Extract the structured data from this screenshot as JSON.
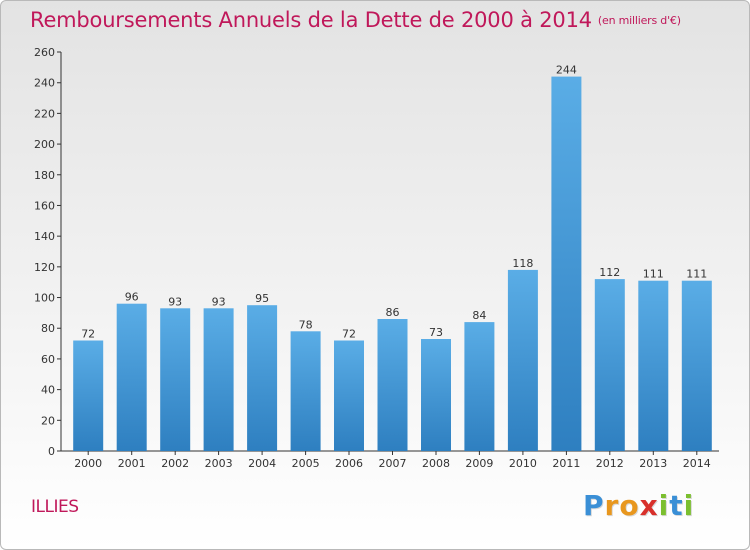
{
  "header": {
    "title": "Remboursements Annuels de la Dette de 2000 à 2014",
    "subtitle": "(en milliers d'€)"
  },
  "footer": {
    "town": "ILLIES",
    "logo": [
      "P",
      "r",
      "o",
      "x",
      "i",
      "t",
      "i"
    ]
  },
  "colors": {
    "title": "#c0185a",
    "bar_top": "#5aade6",
    "bar_bottom": "#2e7fc0",
    "axis": "#333333"
  },
  "chart_data": {
    "type": "bar",
    "title": "Remboursements Annuels de la Dette de 2000 à 2014",
    "xlabel": "",
    "ylabel": "",
    "categories": [
      "2000",
      "2001",
      "2002",
      "2003",
      "2004",
      "2005",
      "2006",
      "2007",
      "2008",
      "2009",
      "2010",
      "2011",
      "2012",
      "2013",
      "2014"
    ],
    "values": [
      72,
      96,
      93,
      93,
      95,
      78,
      72,
      86,
      73,
      84,
      118,
      244,
      112,
      111,
      111
    ],
    "ylim": [
      0,
      260
    ],
    "yticks": [
      0,
      20,
      40,
      60,
      80,
      100,
      120,
      140,
      160,
      180,
      200,
      220,
      240,
      260
    ],
    "grid": false,
    "legend": "none"
  }
}
